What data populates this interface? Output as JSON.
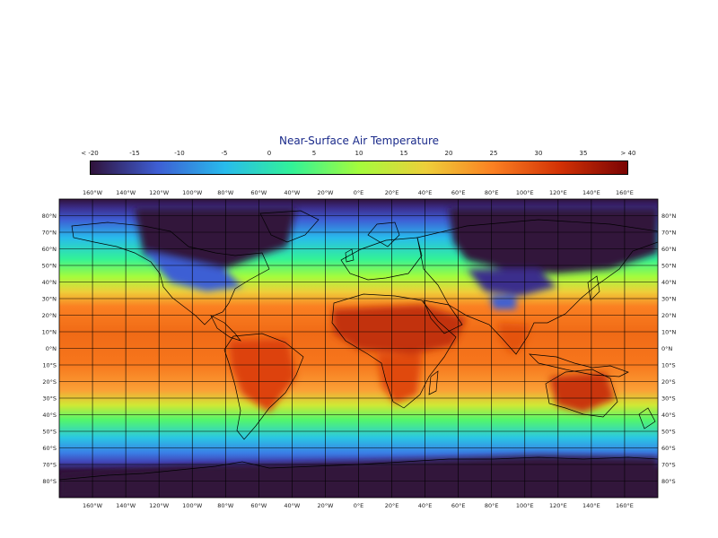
{
  "title": "Near-Surface Air Temperature",
  "colorbar": {
    "labels": [
      "< -20",
      "-15",
      "-10",
      "-5",
      "0",
      "5",
      "10",
      "15",
      "20",
      "25",
      "30",
      "35",
      "> 40"
    ],
    "colors": [
      "#30123b",
      "#3e5ed4",
      "#28bbec",
      "#32f298",
      "#a4fc3c",
      "#eecf3a",
      "#fb8022",
      "#d23105",
      "#7a0403"
    ]
  },
  "map": {
    "lon_labels": [
      "160°W",
      "140°W",
      "120°W",
      "100°W",
      "80°W",
      "60°W",
      "40°W",
      "20°W",
      "0°E",
      "20°E",
      "40°E",
      "60°E",
      "80°E",
      "100°E",
      "120°E",
      "140°E",
      "160°E"
    ],
    "lat_labels": [
      "80°N",
      "70°N",
      "60°N",
      "50°N",
      "40°N",
      "30°N",
      "20°N",
      "10°N",
      "0°N",
      "10°S",
      "20°S",
      "30°S",
      "40°S",
      "50°S",
      "60°S",
      "70°S",
      "80°S"
    ],
    "lon_values": [
      -160,
      -140,
      -120,
      -100,
      -80,
      -60,
      -40,
      -20,
      0,
      20,
      40,
      60,
      80,
      100,
      120,
      140,
      160
    ],
    "lat_values": [
      80,
      70,
      60,
      50,
      40,
      30,
      20,
      10,
      0,
      -10,
      -20,
      -30,
      -40,
      -50,
      -60,
      -70,
      -80
    ]
  }
}
